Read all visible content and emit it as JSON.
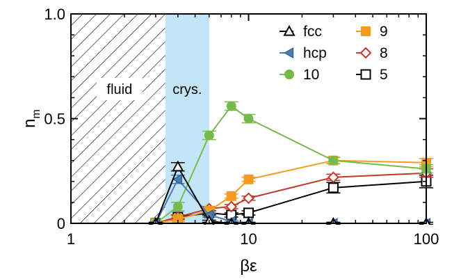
{
  "chart_data": {
    "type": "line",
    "xlabel": "βε",
    "ylabel_main": "n",
    "ylabel_sub": "m",
    "xscale": "log",
    "xlim": [
      1,
      100
    ],
    "ylim": [
      0,
      1.0
    ],
    "xticks": [
      1,
      10,
      100
    ],
    "xtick_labels": [
      "1",
      "10",
      "100"
    ],
    "yticks": [
      0,
      0.5,
      1.0
    ],
    "ytick_labels": [
      "0",
      "0.5",
      "1.0"
    ],
    "grid": false,
    "legend_position": "top-right",
    "regions": [
      {
        "label": "fluid",
        "x": [
          1,
          3.4
        ],
        "style": "hatched"
      },
      {
        "label": "crys.",
        "x": [
          3.4,
          6.0
        ],
        "style": "shaded",
        "color": "#c2e6f8"
      }
    ],
    "series": [
      {
        "name": "fcc",
        "color": "#000000",
        "marker": "triangle-up-open",
        "x": [
          3,
          4,
          6,
          8,
          10,
          30,
          100
        ],
        "y": [
          0,
          0.27,
          0.01,
          0.0,
          0.0,
          0.0,
          0.0
        ],
        "yerr": [
          0.005,
          0.02,
          0.005,
          0.005,
          0.005,
          0.005,
          0.005
        ]
      },
      {
        "name": "hcp",
        "color": "#4a7db8",
        "marker": "triangle-left-filled",
        "x": [
          3,
          4,
          6,
          8,
          10,
          30,
          100
        ],
        "y": [
          0,
          0.21,
          0.04,
          0.01,
          0.0,
          0.0,
          0.0
        ],
        "yerr": [
          0.005,
          0.02,
          0.01,
          0.005,
          0.005,
          0.005,
          0.005
        ]
      },
      {
        "name": "10",
        "color": "#77b94a",
        "marker": "circle-filled",
        "x": [
          3,
          4,
          6,
          8,
          10,
          30,
          100
        ],
        "y": [
          0,
          0.08,
          0.42,
          0.56,
          0.5,
          0.3,
          0.26
        ],
        "yerr": [
          0.005,
          0.02,
          0.02,
          0.02,
          0.02,
          0.015,
          0.02
        ]
      },
      {
        "name": "9",
        "color": "#f59b1e",
        "marker": "square-filled",
        "x": [
          3,
          4,
          6,
          8,
          10,
          30,
          100
        ],
        "y": [
          0,
          0.02,
          0.06,
          0.13,
          0.21,
          0.3,
          0.29
        ],
        "yerr": [
          0.005,
          0.01,
          0.01,
          0.01,
          0.01,
          0.015,
          0.02
        ]
      },
      {
        "name": "8",
        "color": "#c0392b",
        "marker": "diamond-open",
        "x": [
          3,
          4,
          6,
          8,
          10,
          30,
          100
        ],
        "y": [
          0,
          0.03,
          0.07,
          0.08,
          0.12,
          0.22,
          0.24
        ],
        "yerr": [
          0.005,
          0.01,
          0.01,
          0.01,
          0.01,
          0.015,
          0.02
        ]
      },
      {
        "name": "5",
        "color": "#000000",
        "marker": "square-open",
        "x": [
          3,
          4,
          6,
          8,
          10,
          30,
          100
        ],
        "y": [
          0,
          0.03,
          0.05,
          0.04,
          0.05,
          0.17,
          0.2
        ],
        "yerr": [
          0.005,
          0.01,
          0.01,
          0.01,
          0.01,
          0.025,
          0.03
        ]
      }
    ]
  }
}
